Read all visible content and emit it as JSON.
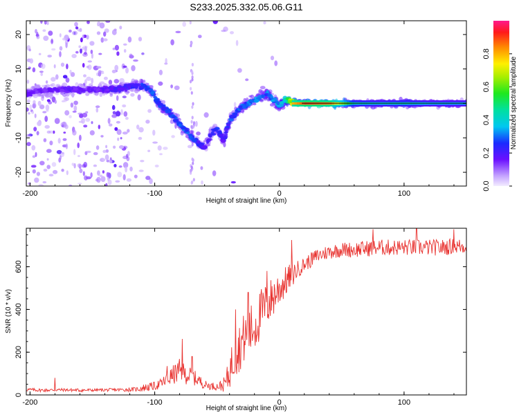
{
  "title": "S233.2025.332.05.06.G11",
  "chart_data": [
    {
      "type": "heatmap",
      "name": "spectrogram",
      "xlabel": "Height of straight line (km)",
      "ylabel": "Frequency (Hz)",
      "xlim": [
        -203,
        150
      ],
      "ylim": [
        -24,
        24
      ],
      "xticks": [
        -200,
        -100,
        0,
        100
      ],
      "yticks": [
        -20,
        -10,
        0,
        10,
        20
      ],
      "colorbar": {
        "label": "Normalized spectral amplitude",
        "range": [
          0,
          1
        ],
        "ticks": [
          0,
          0.2,
          0.4,
          0.6,
          0.8
        ],
        "tick_labels": [
          "0.0",
          "0.2",
          "0.4",
          "0.6",
          "0.8"
        ]
      },
      "ridge": {
        "x": [
          -200,
          -185,
          -170,
          -150,
          -130,
          -120,
          -110,
          -103,
          -97,
          -90,
          -80,
          -70,
          -60,
          -55,
          -50,
          -45,
          -40,
          -35,
          -30,
          -25,
          -20,
          -15,
          -10,
          -5,
          0,
          5,
          10,
          20,
          40,
          60,
          80,
          100,
          120,
          150
        ],
        "freq": [
          3,
          4,
          4,
          4,
          4,
          5,
          5,
          4,
          0,
          -2,
          -6,
          -10,
          -13,
          -9,
          -7,
          -11,
          -5,
          -3,
          -1,
          0,
          1,
          2,
          3,
          1,
          -1,
          1,
          0.5,
          0,
          0,
          0,
          0,
          0,
          0,
          0
        ],
        "amplitude": [
          0.18,
          0.18,
          0.2,
          0.18,
          0.22,
          0.25,
          0.3,
          0.32,
          0.3,
          0.3,
          0.32,
          0.3,
          0.22,
          0.25,
          0.3,
          0.22,
          0.3,
          0.32,
          0.33,
          0.35,
          0.36,
          0.38,
          0.34,
          0.38,
          0.4,
          0.5,
          0.8,
          0.9,
          0.85,
          0.42,
          0.38,
          0.42,
          0.35,
          0.35
        ]
      }
    },
    {
      "type": "line",
      "name": "snr",
      "xlabel": "Height of straight line (km)",
      "ylabel": "SNR (10 * v/v)",
      "xlim": [
        -203,
        150
      ],
      "ylim": [
        0,
        780
      ],
      "xticks": [
        -200,
        -100,
        0,
        100
      ],
      "yticks": [
        0,
        200,
        400,
        600
      ],
      "color": "#e8322f",
      "x": [
        -203,
        -190,
        -175,
        -160,
        -145,
        -130,
        -115,
        -110,
        -100,
        -95,
        -90,
        -85,
        -80,
        -75,
        -70,
        -65,
        -60,
        -55,
        -50,
        -45,
        -42,
        -38,
        -35,
        -30,
        -25,
        -20,
        -15,
        -10,
        -5,
        0,
        5,
        10,
        15,
        20,
        25,
        30,
        35,
        40,
        50,
        60,
        70,
        80,
        90,
        100,
        110,
        120,
        130,
        140,
        150
      ],
      "y": [
        25,
        22,
        24,
        22,
        23,
        24,
        26,
        32,
        42,
        52,
        72,
        95,
        110,
        95,
        85,
        70,
        48,
        42,
        40,
        45,
        70,
        150,
        190,
        250,
        290,
        320,
        380,
        420,
        460,
        500,
        530,
        560,
        590,
        610,
        630,
        650,
        660,
        670,
        680,
        680,
        685,
        690,
        690,
        690,
        690,
        690,
        690,
        695,
        695
      ],
      "noise": [
        8,
        8,
        7,
        8,
        7,
        8,
        10,
        18,
        20,
        25,
        35,
        45,
        60,
        45,
        40,
        30,
        20,
        18,
        18,
        30,
        60,
        100,
        110,
        120,
        120,
        130,
        120,
        110,
        100,
        90,
        70,
        60,
        40,
        35,
        35,
        35,
        35,
        35,
        35,
        38,
        38,
        38,
        38,
        38,
        38,
        38,
        38,
        38,
        38
      ],
      "spikes": [
        {
          "x": -180,
          "y": 80
        },
        {
          "x": -90,
          "y": 135
        },
        {
          "x": -78,
          "y": 262
        },
        {
          "x": -70,
          "y": 180
        },
        {
          "x": -35,
          "y": 400
        },
        {
          "x": -25,
          "y": 480
        },
        {
          "x": -10,
          "y": 580
        },
        {
          "x": 10,
          "y": 725
        },
        {
          "x": 75,
          "y": 775
        },
        {
          "x": 110,
          "y": 780
        },
        {
          "x": 140,
          "y": 775
        }
      ]
    }
  ]
}
